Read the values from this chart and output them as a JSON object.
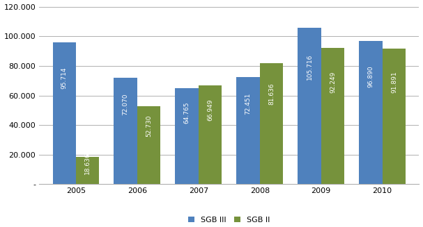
{
  "years": [
    "2005",
    "2006",
    "2007",
    "2008",
    "2009",
    "2010"
  ],
  "sgb3": [
    95714,
    72070,
    64765,
    72451,
    105716,
    96890
  ],
  "sgb2": [
    18636,
    52730,
    66949,
    81636,
    92249,
    91891
  ],
  "sgb3_labels": [
    "95.714",
    "72.070",
    "64.765",
    "72.451",
    "105.716",
    "96.890"
  ],
  "sgb2_labels": [
    "18.636",
    "52.730",
    "66.949",
    "81.636",
    "92.249",
    "91.891"
  ],
  "color_sgb3": "#4F81BD",
  "color_sgb2": "#76923C",
  "legend_labels": [
    "SGB III",
    "SGB II"
  ],
  "ylim": [
    0,
    120000
  ],
  "yticks": [
    0,
    20000,
    40000,
    60000,
    80000,
    100000,
    120000
  ],
  "ytick_labels": [
    "-",
    "20.000",
    "40.000",
    "60.000",
    "80.000",
    "100.000",
    "120.000"
  ],
  "bar_width": 0.38,
  "label_fontsize": 6.5,
  "tick_fontsize": 8,
  "legend_fontsize": 8,
  "background_color": "#ffffff",
  "grid_color": "#b0b0b0"
}
